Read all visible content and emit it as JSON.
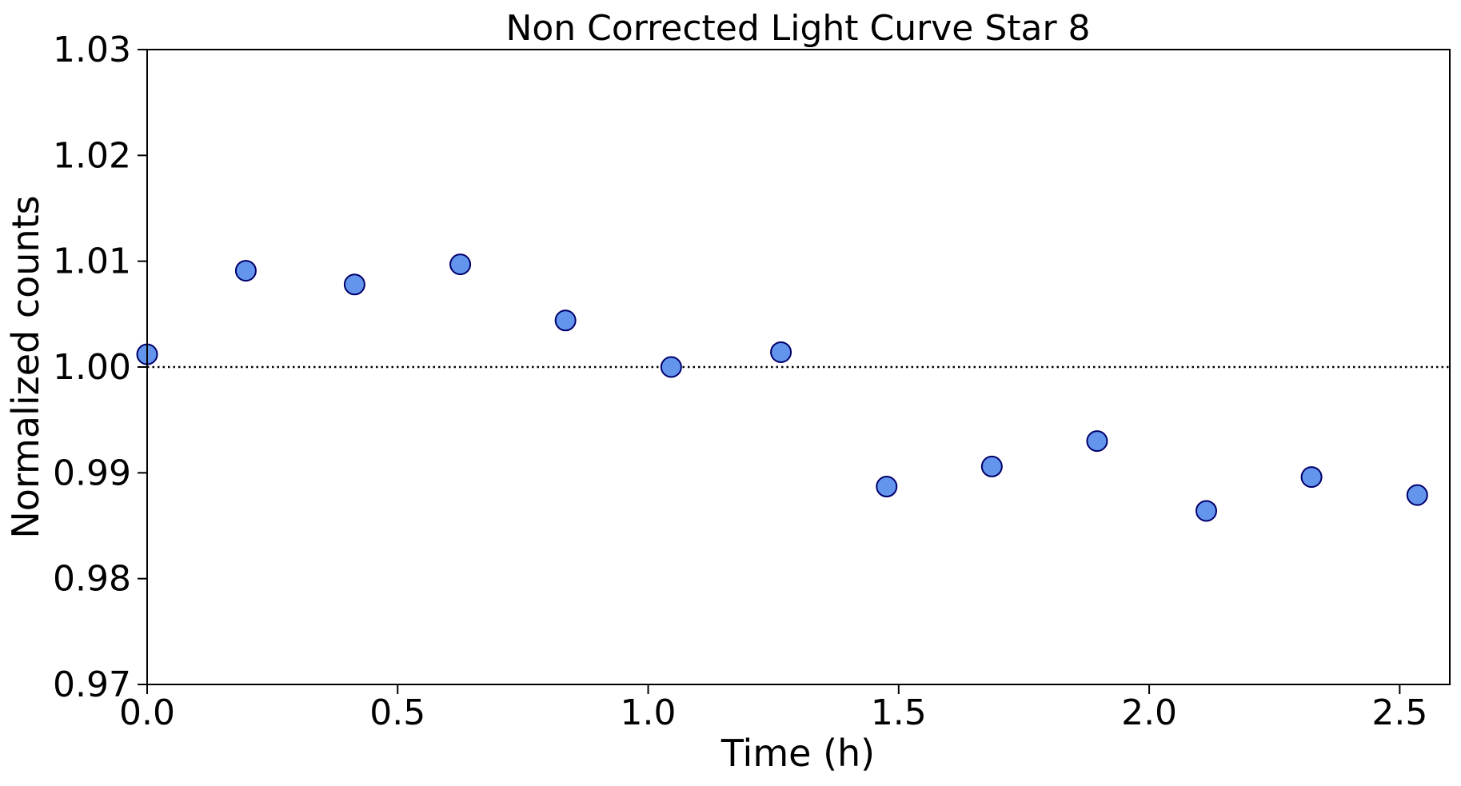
{
  "chart_data": {
    "type": "scatter",
    "title": "Non Corrected Light Curve Star 8",
    "xlabel": "Time (h)",
    "ylabel": "Normalized counts",
    "xlim": [
      0.0,
      2.6
    ],
    "ylim": [
      0.97,
      1.03
    ],
    "xticks": [
      "0.0",
      "0.5",
      "1.0",
      "1.5",
      "2.0",
      "2.5"
    ],
    "yticks": [
      "0.97",
      "0.98",
      "0.99",
      "1.00",
      "1.01",
      "1.02",
      "1.03"
    ],
    "reference_line": {
      "y": 1.0,
      "style": "dotted",
      "color": "#000000"
    },
    "grid": false,
    "series": [
      {
        "marker_color": "#6495ED",
        "marker_edge_color": "#00006B",
        "x": [
          0.0,
          0.197,
          0.414,
          0.625,
          0.835,
          1.046,
          1.265,
          1.476,
          1.686,
          1.896,
          2.114,
          2.324,
          2.535
        ],
        "y": [
          1.0012,
          1.0091,
          1.0078,
          1.0097,
          1.0044,
          1.0,
          1.0014,
          0.9887,
          0.9906,
          0.993,
          0.9864,
          0.9896,
          0.9879
        ]
      }
    ]
  }
}
